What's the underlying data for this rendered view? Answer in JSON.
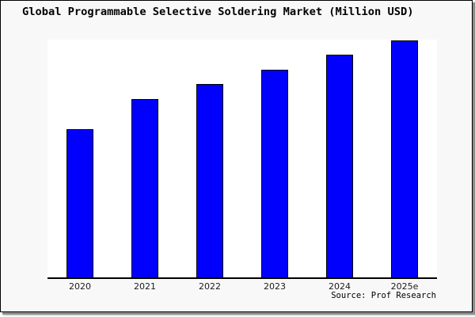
{
  "chart": {
    "title": "Global Programmable Selective Soldering Market (Million USD)",
    "source": "Source: Prof Research"
  },
  "colors": {
    "bar_fill": "#0000fc",
    "bar_edge": "#000000",
    "axis": "#000000",
    "background": "#f8f8f8",
    "plot_background": "#ffffff",
    "shadow_dark": "#8c8c8c",
    "shadow_light": "#c2c2c2"
  },
  "chart_data": {
    "type": "bar",
    "title": "Global Programmable Selective Soldering Market (Million USD)",
    "categories": [
      "2020",
      "2021",
      "2022",
      "2023",
      "2024",
      "2025e"
    ],
    "values": [
      62.2,
      74.9,
      81.2,
      87.3,
      93.6,
      99.5
    ],
    "xlabel": "",
    "ylabel": "",
    "ylim": [
      0,
      100
    ],
    "y_axis_visible": false,
    "grid": false,
    "legend": false,
    "source_label": "Source: Prof Research"
  }
}
